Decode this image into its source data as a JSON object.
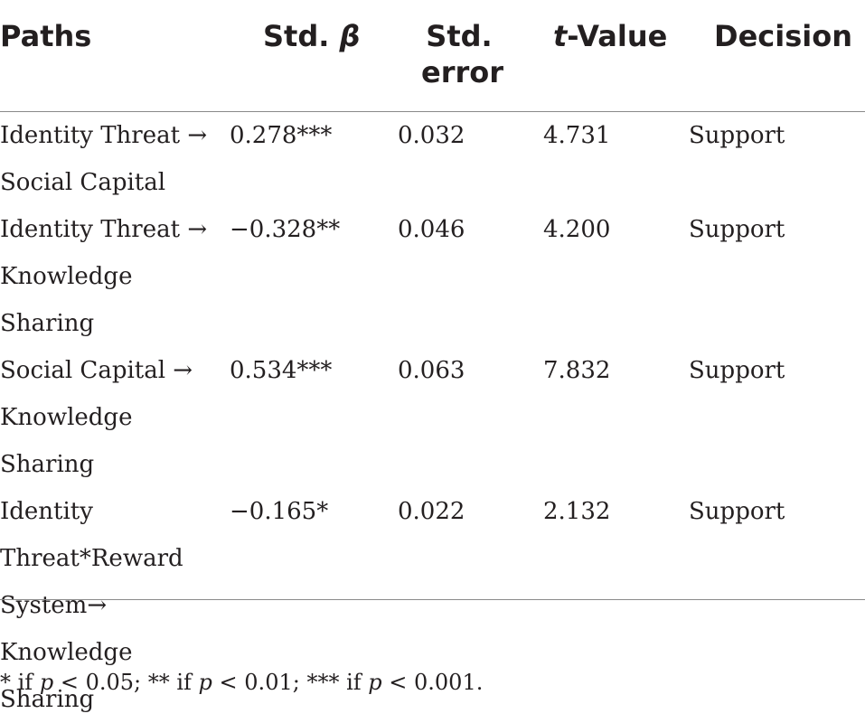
{
  "table": {
    "headers": {
      "paths": "Paths",
      "beta_prefix": "Std. ",
      "beta_symbol": "β",
      "stderr_line1": "Std.",
      "stderr_line2": "error",
      "tvalue_italic": "t",
      "tvalue_rest": "-Value",
      "decision": "Decision"
    },
    "rows": [
      {
        "path_lines": [
          "Identity Threat →",
          "Social Capital"
        ],
        "beta": "0.278***",
        "std_error": "0.032",
        "t_value": "4.731",
        "decision": "Support"
      },
      {
        "path_lines": [
          "Identity Threat →",
          "Knowledge Sharing"
        ],
        "beta": "−0.328**",
        "std_error": "0.046",
        "t_value": "4.200",
        "decision": "Support"
      },
      {
        "path_lines": [
          "Social Capital →",
          "Knowledge Sharing"
        ],
        "beta": "0.534***",
        "std_error": "0.063",
        "t_value": "7.832",
        "decision": "Support"
      },
      {
        "path_lines": [
          "Identity",
          "Threat*Reward",
          "System→",
          "Knowledge Sharing"
        ],
        "beta": "−0.165*",
        "std_error": "0.022",
        "t_value": "2.132",
        "decision": "Support"
      }
    ]
  },
  "footnote": {
    "part1": "* if ",
    "p1": "p",
    "part2": " < 0.05; ** if ",
    "p2": "p",
    "part3": " < 0.01; *** if ",
    "p3": "p",
    "part4": " < 0.001."
  }
}
